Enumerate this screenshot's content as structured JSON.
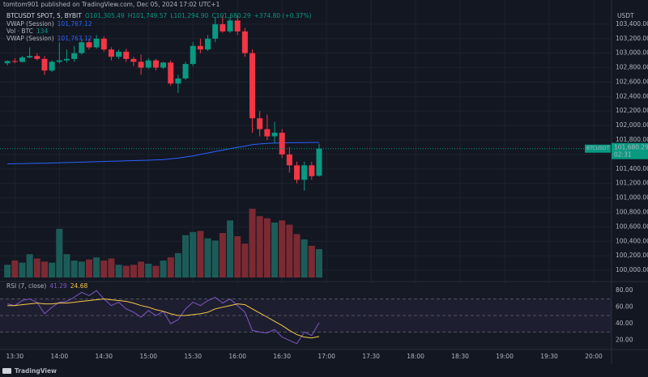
{
  "header": {
    "publisher": "tomtom901 published on TradingView.com, Dec 05, 2024 17:02 UTC+1",
    "brand": "TradingView"
  },
  "chart_data": {
    "type": "candlestick",
    "symbol": "BTCUSDT SPOT, 5, BYBIT",
    "ohlc_legend": [
      "O101,305.49",
      "H101,749.57",
      "L101,294.90",
      "C101,680.29",
      "+374.80 (+0.37%)"
    ],
    "indicator_legends": [
      {
        "name": "VWAP (Session)",
        "value": "101,767.12"
      },
      {
        "name": "Vol · BTC",
        "value": "134"
      },
      {
        "name": "VWAP (Session)",
        "value": "101,767.12"
      }
    ],
    "x": [
      "13:25",
      "13:30",
      "13:35",
      "13:40",
      "13:45",
      "13:50",
      "13:55",
      "14:00",
      "14:05",
      "14:10",
      "14:15",
      "14:20",
      "14:25",
      "14:30",
      "14:35",
      "14:40",
      "14:45",
      "14:50",
      "14:55",
      "15:00",
      "15:05",
      "15:10",
      "15:15",
      "15:20",
      "15:25",
      "15:30",
      "15:35",
      "15:40",
      "15:45",
      "15:50",
      "15:55",
      "16:00",
      "16:05",
      "16:10",
      "16:15",
      "16:20",
      "16:25",
      "16:30",
      "16:35",
      "16:40",
      "16:45",
      "16:50",
      "16:55"
    ],
    "open": [
      102860,
      102890,
      102880,
      102940,
      102960,
      102920,
      102760,
      102880,
      102900,
      102920,
      103000,
      103150,
      103080,
      103200,
      103050,
      102950,
      103020,
      102920,
      102880,
      102800,
      102900,
      102800,
      102870,
      102580,
      102650,
      102850,
      103100,
      103050,
      103200,
      103400,
      103300,
      103450,
      103300,
      103000,
      102100,
      101950,
      101850,
      101900,
      101600,
      101450,
      101250,
      101450,
      101305.49
    ],
    "high": [
      102900,
      102930,
      102960,
      103080,
      103000,
      102960,
      102900,
      103150,
      103050,
      103100,
      103200,
      103200,
      103250,
      103230,
      103080,
      103050,
      103060,
      102950,
      102980,
      102930,
      102920,
      102880,
      102900,
      102700,
      102880,
      103150,
      103200,
      103250,
      103500,
      103520,
      103500,
      103520,
      103350,
      103050,
      102200,
      102150,
      102050,
      101950,
      101700,
      101500,
      101500,
      101500,
      101749.57
    ],
    "low": [
      102830,
      102860,
      102870,
      102930,
      102900,
      102700,
      102740,
      102860,
      102870,
      102880,
      102980,
      103050,
      103060,
      103020,
      102900,
      102920,
      102880,
      102820,
      102700,
      102780,
      102760,
      102780,
      102550,
      102450,
      102630,
      102820,
      103000,
      103030,
      103150,
      103280,
      103280,
      103250,
      102950,
      101900,
      101850,
      101800,
      101750,
      101550,
      101350,
      101200,
      101100,
      101250,
      101294.9
    ],
    "close": [
      102890,
      102880,
      102940,
      102960,
      102920,
      102760,
      102880,
      102900,
      102920,
      103000,
      103150,
      103080,
      103200,
      103050,
      102950,
      103020,
      102920,
      102880,
      102800,
      102900,
      102800,
      102870,
      102580,
      102650,
      102850,
      103100,
      103050,
      103200,
      103400,
      103300,
      103450,
      103300,
      103000,
      102100,
      101950,
      101850,
      101900,
      101600,
      101450,
      101250,
      101450,
      101300,
      101680.29
    ],
    "volume": [
      60,
      80,
      70,
      110,
      90,
      75,
      70,
      230,
      110,
      80,
      75,
      85,
      95,
      80,
      90,
      60,
      55,
      60,
      75,
      65,
      55,
      80,
      95,
      115,
      200,
      215,
      220,
      185,
      175,
      210,
      270,
      195,
      160,
      325,
      290,
      280,
      260,
      270,
      250,
      205,
      180,
      150,
      134
    ],
    "vwap": [
      101470,
      101472,
      101474,
      101476,
      101478,
      101480,
      101482,
      101485,
      101488,
      101491,
      101494,
      101497,
      101500,
      101503,
      101506,
      101509,
      101512,
      101515,
      101518,
      101521,
      101525,
      101530,
      101540,
      101550,
      101565,
      101580,
      101600,
      101620,
      101640,
      101660,
      101680,
      101700,
      101715,
      101735,
      101745,
      101752,
      101757,
      101760,
      101762,
      101764,
      101765,
      101766,
      101767.12
    ],
    "colors": {
      "up": "#089981",
      "down": "#f23645",
      "vwap": "#2962ff",
      "volume_up": "#1c5c58",
      "volume_down": "#7b2a33"
    },
    "xlim": [
      "13:20",
      "20:12"
    ],
    "xticks": [
      "13:30",
      "14:00",
      "14:30",
      "15:00",
      "15:30",
      "16:00",
      "16:30",
      "17:00",
      "17:30",
      "18:00",
      "18:30",
      "19:00",
      "19:30",
      "20:00"
    ],
    "ylim": [
      99900,
      103600
    ],
    "y_unit": "USDT",
    "yticks": [
      {
        "value": 100000,
        "label": "100,000.00"
      },
      {
        "value": 100200,
        "label": "100,200.00"
      },
      {
        "value": 100400,
        "label": "100,400.00"
      },
      {
        "value": 100600,
        "label": "100,600.00"
      },
      {
        "value": 100800,
        "label": "100,800.00"
      },
      {
        "value": 101000,
        "label": "101,000.00"
      },
      {
        "value": 101200,
        "label": "101,200.00"
      },
      {
        "value": 101400,
        "label": "101,400.00"
      },
      {
        "value": 101600,
        "label": "101,600.00"
      },
      {
        "value": 101800,
        "label": "101,800.00"
      },
      {
        "value": 102000,
        "label": "102,000.00"
      },
      {
        "value": 102200,
        "label": "102,200.00"
      },
      {
        "value": 102400,
        "label": "102,400.00"
      },
      {
        "value": 102600,
        "label": "102,600.00"
      },
      {
        "value": 102800,
        "label": "102,800.00"
      },
      {
        "value": 103000,
        "label": "103,000.00"
      },
      {
        "value": 103200,
        "label": "103,200.00"
      },
      {
        "value": 103400,
        "label": "103,400.00"
      }
    ],
    "last_price": {
      "symbol": "BTCUSDT",
      "label": "101,680.29",
      "countdown": "02:31"
    },
    "rsi": {
      "title": "RSI (7, close)",
      "value_label": "41.29",
      "ma_label": "24.68",
      "values": [
        64,
        62,
        68,
        70,
        66,
        52,
        60,
        66,
        67,
        72,
        78,
        74,
        80,
        70,
        62,
        66,
        58,
        54,
        48,
        56,
        50,
        55,
        40,
        45,
        58,
        66,
        62,
        68,
        72,
        65,
        70,
        62,
        54,
        32,
        30,
        29,
        33,
        24,
        20,
        16,
        30,
        26,
        41.29
      ],
      "ma": [
        62,
        62,
        63,
        64,
        65,
        64,
        64,
        65,
        65,
        66,
        67,
        68,
        69,
        70,
        69,
        68,
        67,
        65,
        62,
        60,
        57,
        55,
        52,
        50,
        50,
        51,
        52,
        54,
        58,
        60,
        62,
        64,
        63,
        58,
        53,
        48,
        43,
        38,
        32,
        27,
        24,
        23,
        24.68
      ],
      "ylim": [
        10,
        88
      ],
      "yticks": [
        {
          "value": 20,
          "label": "20.00"
        },
        {
          "value": 40,
          "label": "40.00"
        },
        {
          "value": 60,
          "label": "60.00"
        },
        {
          "value": 80,
          "label": "80.00"
        }
      ],
      "levels": [
        70,
        50,
        30
      ],
      "colors": {
        "rsi": "#7e57c2",
        "ma": "#f7c948"
      }
    }
  }
}
